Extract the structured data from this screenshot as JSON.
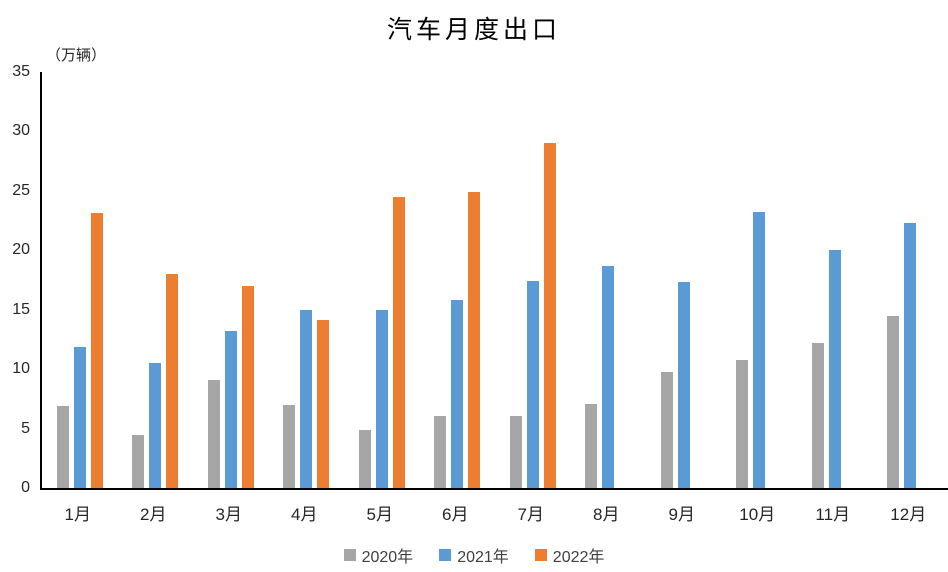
{
  "title": "汽车月度出口",
  "y_axis_unit_label": "（万辆）",
  "colors": {
    "series_2020": "#a6a6a6",
    "series_2021": "#5b9bd5",
    "series_2022": "#ed7d31",
    "axis_line": "#000000",
    "text": "#262626",
    "background": "#ffffff"
  },
  "chart_data": {
    "type": "bar",
    "title": "汽车月度出口",
    "ylabel": "（万辆）",
    "xlabel": "",
    "categories": [
      "1月",
      "2月",
      "3月",
      "4月",
      "5月",
      "6月",
      "7月",
      "8月",
      "9月",
      "10月",
      "11月",
      "12月"
    ],
    "series": [
      {
        "name": "2020年",
        "color": "#a6a6a6",
        "values": [
          6.9,
          4.5,
          9.1,
          7.0,
          4.9,
          6.1,
          6.1,
          7.1,
          9.8,
          10.8,
          12.2,
          14.5
        ]
      },
      {
        "name": "2021年",
        "color": "#5b9bd5",
        "values": [
          11.9,
          10.5,
          13.2,
          15.0,
          15.0,
          15.8,
          17.4,
          18.7,
          17.3,
          23.2,
          20.0,
          22.3
        ]
      },
      {
        "name": "2022年",
        "color": "#ed7d31",
        "values": [
          23.1,
          18.0,
          17.0,
          14.1,
          24.5,
          24.9,
          29.0,
          null,
          null,
          null,
          null,
          null
        ]
      }
    ],
    "ylim": [
      0,
      35
    ],
    "yticks": [
      0,
      5,
      10,
      15,
      20,
      25,
      30,
      35
    ],
    "grid": false,
    "legend_position": "bottom"
  }
}
